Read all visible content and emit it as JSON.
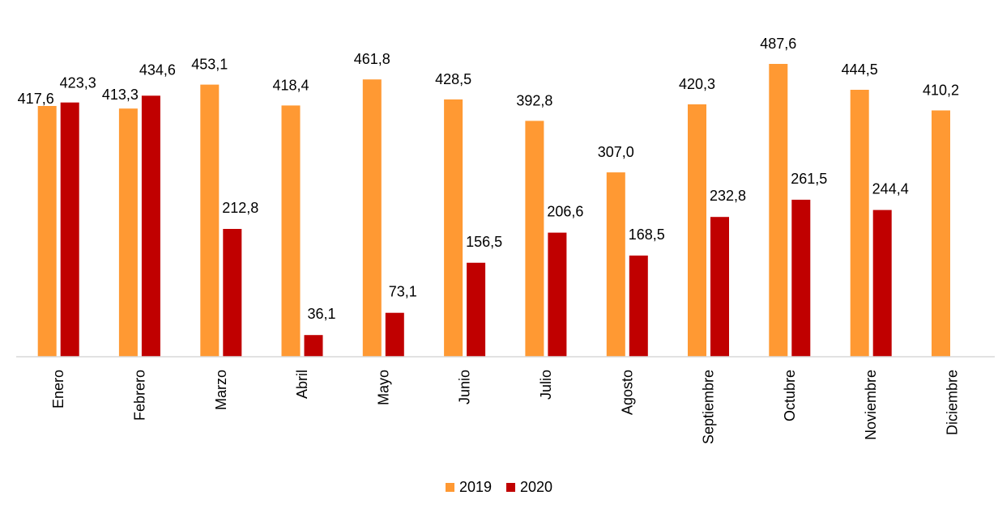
{
  "chart_data": {
    "type": "bar",
    "categories": [
      "Enero",
      "Febrero",
      "Marzo",
      "Abril",
      "Mayo",
      "Junio",
      "Julio",
      "Agosto",
      "Septiembre",
      "Octubre",
      "Noviembre",
      "Diciembre"
    ],
    "series": [
      {
        "name": "2019",
        "color": "#ff9933",
        "values": [
          417.6,
          413.3,
          453.1,
          418.4,
          461.8,
          428.5,
          392.8,
          307.0,
          420.3,
          487.6,
          444.5,
          410.2
        ],
        "labels": [
          "417,6",
          "413,3",
          "453,1",
          "418,4",
          "461,8",
          "428,5",
          "392,8",
          "307,0",
          "420,3",
          "487,6",
          "444,5",
          "410,2"
        ]
      },
      {
        "name": "2020",
        "color": "#c00000",
        "values": [
          423.3,
          434.6,
          212.8,
          36.1,
          73.1,
          156.5,
          206.6,
          168.5,
          232.8,
          261.5,
          244.4,
          null
        ],
        "labels": [
          "423,3",
          "434,6",
          "212,8",
          "36,1",
          "73,1",
          "156,5",
          "206,6",
          "168,5",
          "232,8",
          "261,5",
          "244,4",
          ""
        ]
      }
    ],
    "title": "",
    "xlabel": "",
    "ylabel": "",
    "ylim": [
      0,
      487.6
    ],
    "grid": false,
    "legend_position": "bottom"
  }
}
